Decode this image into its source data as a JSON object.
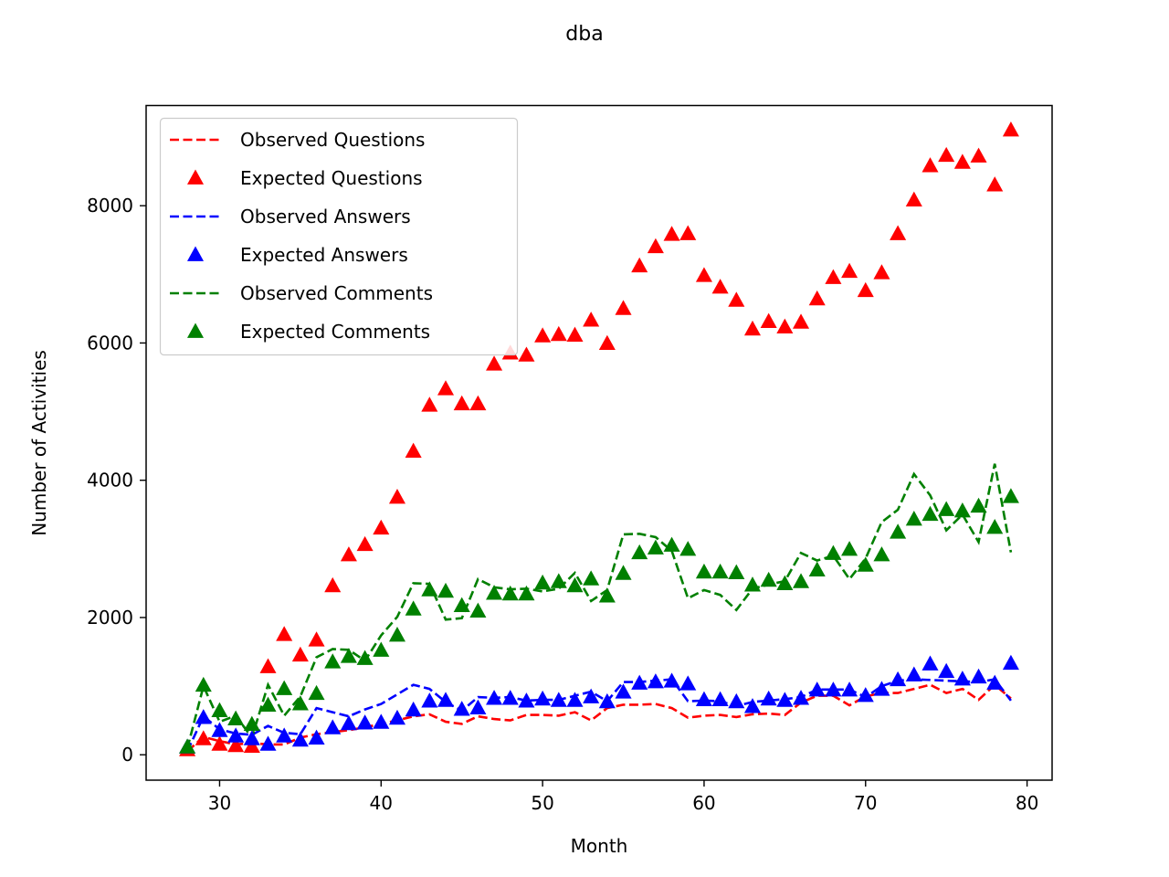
{
  "chart_data": {
    "type": "line",
    "title": "dba",
    "xlabel": "Month",
    "ylabel": "Number of Activities",
    "xlim": [
      25.45,
      81.55
    ],
    "ylim": [
      -370,
      9460
    ],
    "xticks": [
      30,
      40,
      50,
      60,
      70,
      80
    ],
    "yticks": [
      0,
      2000,
      4000,
      6000,
      8000
    ],
    "grid": false,
    "legend_position": "top-left",
    "x": [
      28,
      29,
      30,
      31,
      32,
      33,
      34,
      35,
      36,
      37,
      38,
      39,
      40,
      41,
      42,
      43,
      44,
      45,
      46,
      47,
      48,
      49,
      50,
      51,
      52,
      53,
      54,
      55,
      56,
      57,
      58,
      59,
      60,
      61,
      62,
      63,
      64,
      65,
      66,
      67,
      68,
      69,
      70,
      71,
      72,
      73,
      74,
      75,
      76,
      77,
      78,
      79
    ],
    "series": [
      {
        "name": "Observed Questions",
        "style": "dashed",
        "color": "#ff0000",
        "values": [
          50,
          260,
          200,
          150,
          170,
          150,
          150,
          250,
          300,
          330,
          360,
          400,
          450,
          500,
          560,
          590,
          480,
          450,
          560,
          520,
          500,
          580,
          580,
          570,
          620,
          500,
          680,
          730,
          730,
          740,
          680,
          540,
          570,
          580,
          550,
          590,
          600,
          580,
          760,
          860,
          860,
          720,
          850,
          900,
          900,
          960,
          1020,
          900,
          960,
          800,
          1020,
          820
        ]
      },
      {
        "name": "Expected Questions",
        "style": "marker",
        "color": "#ff0000",
        "values": [
          70,
          230,
          150,
          130,
          120,
          1280,
          1750,
          1450,
          1670,
          2460,
          2910,
          3060,
          3300,
          3750,
          4420,
          5090,
          5330,
          5110,
          5110,
          5690,
          5850,
          5820,
          6100,
          6120,
          6110,
          6330,
          5990,
          6500,
          7120,
          7400,
          7580,
          7590,
          6980,
          6810,
          6620,
          6200,
          6310,
          6230,
          6300,
          6640,
          6950,
          7040,
          6760,
          7020,
          7590,
          8080,
          8580,
          8730,
          8630,
          8720,
          8300,
          9100
        ]
      },
      {
        "name": "Observed Answers",
        "style": "dashed",
        "color": "#0000ff",
        "values": [
          50,
          560,
          370,
          310,
          290,
          420,
          320,
          300,
          680,
          620,
          560,
          660,
          740,
          880,
          1020,
          960,
          770,
          640,
          840,
          830,
          840,
          790,
          800,
          800,
          860,
          920,
          780,
          1060,
          1060,
          1080,
          1100,
          780,
          790,
          780,
          710,
          770,
          790,
          810,
          840,
          950,
          950,
          950,
          840,
          1000,
          1080,
          1100,
          1090,
          1080,
          1070,
          1060,
          1100,
          790
        ]
      },
      {
        "name": "Expected Answers",
        "style": "marker",
        "color": "#0000ff",
        "values": [
          110,
          540,
          350,
          270,
          230,
          150,
          270,
          210,
          240,
          390,
          450,
          460,
          470,
          530,
          650,
          780,
          790,
          660,
          680,
          820,
          820,
          780,
          810,
          790,
          790,
          840,
          770,
          910,
          1040,
          1060,
          1070,
          1030,
          800,
          800,
          770,
          700,
          810,
          790,
          820,
          940,
          940,
          940,
          860,
          950,
          1090,
          1160,
          1320,
          1210,
          1100,
          1130,
          1040,
          1330
        ]
      },
      {
        "name": "Observed Comments",
        "style": "dashed",
        "color": "#008000",
        "values": [
          90,
          1000,
          480,
          570,
          250,
          1020,
          570,
          850,
          1420,
          1540,
          1530,
          1370,
          1740,
          2010,
          2500,
          2490,
          1970,
          1990,
          2560,
          2440,
          2410,
          2420,
          2380,
          2420,
          2650,
          2240,
          2400,
          3210,
          3220,
          3170,
          2970,
          2280,
          2400,
          2330,
          2110,
          2420,
          2480,
          2530,
          2940,
          2830,
          2900,
          2560,
          2860,
          3390,
          3570,
          4090,
          3780,
          3270,
          3500,
          3100,
          4240,
          2950
        ]
      },
      {
        "name": "Expected Comments",
        "style": "marker",
        "color": "#008000",
        "values": [
          110,
          1010,
          640,
          520,
          440,
          720,
          960,
          740,
          890,
          1350,
          1430,
          1400,
          1520,
          1740,
          2120,
          2400,
          2380,
          2170,
          2090,
          2350,
          2340,
          2340,
          2500,
          2520,
          2460,
          2560,
          2310,
          2640,
          2940,
          3010,
          3050,
          2990,
          2660,
          2660,
          2650,
          2470,
          2540,
          2490,
          2520,
          2690,
          2930,
          2990,
          2760,
          2910,
          3240,
          3430,
          3500,
          3570,
          3550,
          3620,
          3310,
          3760
        ]
      }
    ]
  }
}
